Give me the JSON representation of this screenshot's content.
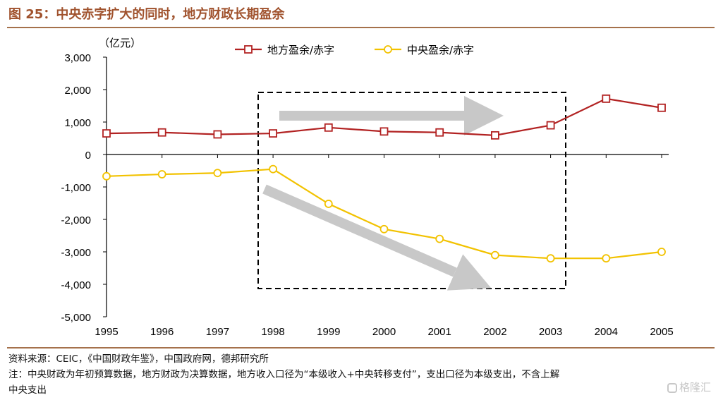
{
  "header": {
    "title": "图 25：中央赤字扩大的同时，地方财政长期盈余"
  },
  "chart_data": {
    "type": "line",
    "ylabel": "（亿元）",
    "xlabel": "",
    "x": [
      "1995",
      "1996",
      "1997",
      "1998",
      "1999",
      "2000",
      "2001",
      "2002",
      "2003",
      "2004",
      "2005"
    ],
    "series": [
      {
        "name": "地方盈余/赤字",
        "color": "#b22222",
        "marker": "square",
        "values": [
          650,
          680,
          620,
          650,
          830,
          710,
          680,
          590,
          900,
          1720,
          1440
        ]
      },
      {
        "name": "中央盈余/赤字",
        "color": "#f2c200",
        "marker": "circle",
        "values": [
          -670,
          -610,
          -570,
          -450,
          -1520,
          -2300,
          -2600,
          -3100,
          -3200,
          -3200,
          -3000
        ]
      }
    ],
    "ylim": [
      -5000,
      3000
    ],
    "yticks": [
      "3,000",
      "2,000",
      "1,000",
      "0",
      "-1,000",
      "-2,000",
      "-3,000",
      "-4,000",
      "-5,000"
    ],
    "legend_position": "top",
    "grid": false
  },
  "footer": {
    "source": "资料来源：CEIC，《中国财政年鉴》，中国政府网，德邦研究所",
    "note_line1": "注：中央财政为年初预算数据，地方财政为决算数据，地方收入口径为“本级收入+中央转移支付”，支出口径为本级支出，不含上解",
    "note_line2": "中央支出"
  },
  "watermark": {
    "text": "格隆汇",
    "icon": "logo-icon"
  }
}
